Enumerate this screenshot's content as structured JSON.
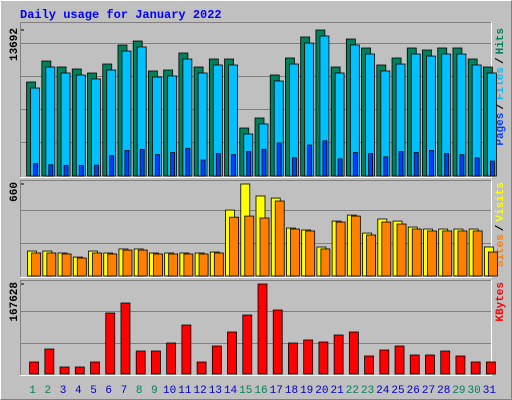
{
  "chart_data": [
    {
      "type": "bar",
      "title": "Daily usage for January 2022",
      "ylim": [
        0,
        13692
      ],
      "yticks": [
        13692
      ],
      "legend_separator": "/",
      "series": [
        {
          "name": "Hits",
          "color": "#00805c",
          "values": [
            8815,
            10785,
            10222,
            10035,
            9660,
            10503,
            12285,
            12660,
            9847,
            9941,
            11535,
            10222,
            10972,
            10972,
            4501,
            5439,
            9472,
            11066,
            13036,
            13692,
            10222,
            12848,
            12004,
            10410,
            11066,
            12004,
            11816,
            12004,
            12004,
            10972,
            10222
          ]
        },
        {
          "name": "Files",
          "color": "#00c0ff",
          "values": [
            8250,
            10220,
            9660,
            9470,
            9100,
            9940,
            11720,
            12100,
            9280,
            9380,
            10970,
            9660,
            10410,
            10410,
            3940,
            4880,
            8910,
            10500,
            12470,
            13130,
            9660,
            12290,
            11440,
            9850,
            10500,
            11440,
            11250,
            11440,
            11440,
            10410,
            9660
          ]
        },
        {
          "name": "Pages",
          "color": "#0040ff",
          "values": [
            1150,
            1050,
            1000,
            980,
            1020,
            1900,
            2400,
            2500,
            2000,
            2200,
            2600,
            1500,
            2100,
            2000,
            2300,
            2500,
            3100,
            1700,
            2900,
            3300,
            1600,
            2200,
            2100,
            1800,
            2300,
            2200,
            2400,
            2100,
            2000,
            1700,
            1400
          ]
        }
      ]
    },
    {
      "type": "bar",
      "ylim": [
        0,
        660
      ],
      "yticks": [
        660
      ],
      "legend_separator": "/",
      "series": [
        {
          "name": "Visits",
          "color": "#ffff00",
          "values": [
            179,
            179,
            165,
            136,
            179,
            165,
            194,
            194,
            165,
            165,
            165,
            165,
            172,
            473,
            660,
            574,
            559,
            344,
            330,
            208,
            394,
            437,
            308,
            409,
            394,
            351,
            337,
            337,
            337,
            337,
            208
          ]
        },
        {
          "name": "Sites",
          "color": "#ff8000",
          "values": [
            165,
            165,
            158,
            129,
            165,
            158,
            186,
            186,
            158,
            158,
            158,
            158,
            165,
            422,
            430,
            416,
            538,
            337,
            323,
            194,
            387,
            430,
            294,
            387,
            373,
            337,
            323,
            323,
            323,
            323,
            172
          ]
        }
      ]
    },
    {
      "type": "bar",
      "ylim": [
        0,
        167628
      ],
      "yticks": [
        167628
      ],
      "categories": [
        "1",
        "2",
        "3",
        "4",
        "5",
        "6",
        "7",
        "8",
        "9",
        "10",
        "11",
        "12",
        "13",
        "14",
        "15",
        "16",
        "17",
        "18",
        "19",
        "20",
        "21",
        "22",
        "23",
        "24",
        "25",
        "26",
        "27",
        "28",
        "29",
        "30",
        "31"
      ],
      "category_colors": [
        "#00805c",
        "#00805c",
        "#0000c0",
        "#0000c0",
        "#0000c0",
        "#0000c0",
        "#0000c0",
        "#00805c",
        "#00805c",
        "#0000c0",
        "#0000c0",
        "#0000c0",
        "#0000c0",
        "#0000c0",
        "#00805c",
        "#00805c",
        "#0000c0",
        "#0000c0",
        "#0000c0",
        "#0000c0",
        "#0000c0",
        "#00805c",
        "#00805c",
        "#0000c0",
        "#0000c0",
        "#0000c0",
        "#0000c0",
        "#0000c0",
        "#00805c",
        "#00805c",
        "#0000c0"
      ],
      "series": [
        {
          "name": "KBytes",
          "color": "#ff0000",
          "values": [
            22350,
            46563,
            13038,
            13038,
            22350,
            113613,
            132238,
            42838,
            42838,
            57738,
            91263,
            22350,
            52150,
            78225,
            109888,
            167628,
            119200,
            57738,
            63325,
            59600,
            72638,
            78225,
            33525,
            44700,
            52150,
            35388,
            35388,
            42838,
            33525,
            22350,
            22350
          ]
        }
      ]
    }
  ]
}
